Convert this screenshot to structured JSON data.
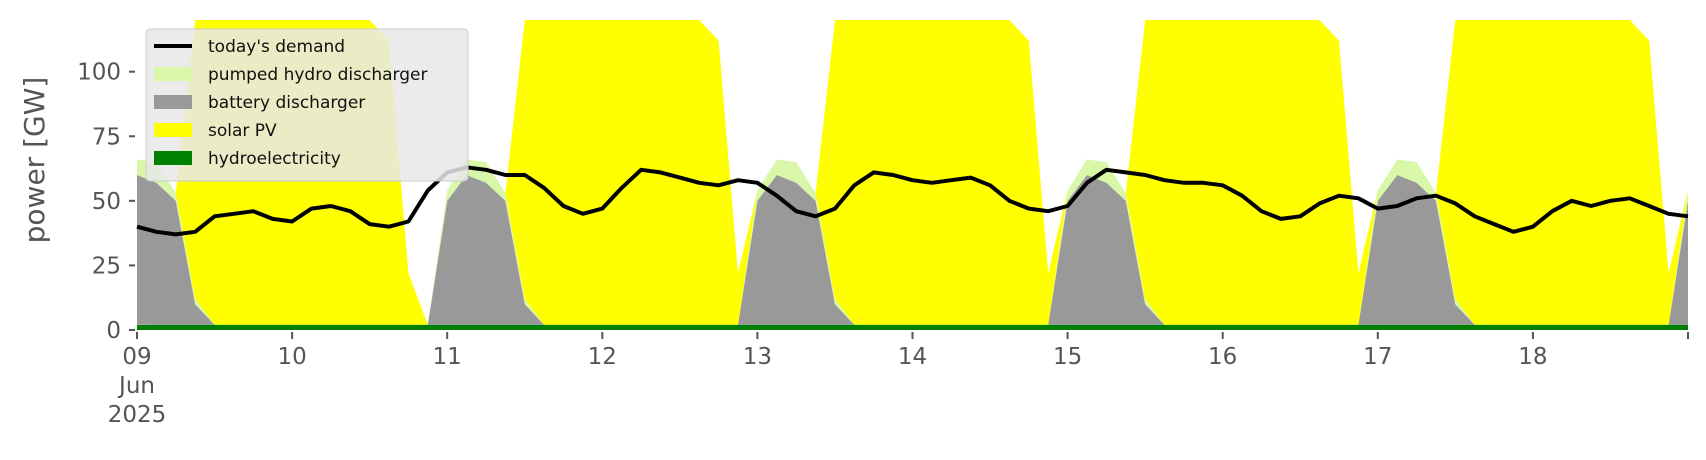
{
  "chart_data": {
    "type": "area",
    "title": "",
    "xlabel": "",
    "ylabel": "power [GW]",
    "xlim_days": [
      0,
      10
    ],
    "ylim": [
      0,
      120
    ],
    "x_ticks": [
      "09\nJun\n2025",
      "10",
      "11",
      "12",
      "13",
      "14",
      "15",
      "16",
      "17",
      "18",
      ""
    ],
    "y_ticks": [
      0,
      25,
      50,
      75,
      100
    ],
    "grid": false,
    "legend_position": "top-left",
    "colors": {
      "demand": "#000000",
      "pumped_hydro": "#d9f7a8",
      "battery": "#999999",
      "solar": "#ffff00",
      "hydro": "#008000",
      "legend_bg": "#e8e8e8"
    },
    "legend": [
      {
        "key": "demand",
        "label": "today's demand",
        "kind": "line"
      },
      {
        "key": "pumped_hydro",
        "label": "pumped hydro discharger",
        "kind": "patch"
      },
      {
        "key": "battery",
        "label": "battery discharger",
        "kind": "patch"
      },
      {
        "key": "solar",
        "label": "solar PV",
        "kind": "patch"
      },
      {
        "key": "hydro",
        "label": "hydroelectricity",
        "kind": "patch"
      }
    ],
    "series": [
      {
        "key": "hydro",
        "values": [
          2,
          2,
          2,
          2,
          2,
          2,
          2,
          2,
          2,
          2,
          2,
          2,
          2,
          2,
          2,
          2,
          2,
          2,
          2,
          2,
          2,
          2,
          2,
          2,
          2,
          2,
          2,
          2,
          2,
          2,
          2,
          2,
          2,
          2,
          2,
          2,
          2,
          2,
          2,
          2,
          2,
          2,
          2,
          2,
          2,
          2,
          2,
          2,
          2,
          2,
          2,
          2,
          2,
          2,
          2,
          2,
          2,
          2,
          2,
          2,
          2,
          2,
          2,
          2,
          2,
          2,
          2,
          2,
          2,
          2,
          2,
          2,
          2,
          2,
          2,
          2,
          2,
          2,
          2,
          2,
          2
        ]
      },
      {
        "key": "battery",
        "values": [
          58,
          55,
          48,
          8,
          0,
          0,
          0,
          0,
          0,
          0,
          0,
          0,
          0,
          0,
          0,
          0,
          48,
          58,
          55,
          48,
          8,
          0,
          0,
          0,
          0,
          0,
          0,
          0,
          0,
          0,
          0,
          0,
          48,
          58,
          55,
          48,
          8,
          0,
          0,
          0,
          0,
          0,
          0,
          0,
          0,
          0,
          0,
          0,
          48,
          58,
          55,
          48,
          8,
          0,
          0,
          0,
          0,
          0,
          0,
          0,
          0,
          0,
          0,
          0,
          48,
          58,
          55,
          48,
          8,
          0,
          0,
          0,
          0,
          0,
          0,
          0,
          0,
          0,
          0,
          0,
          48
        ]
      },
      {
        "key": "pumped_hydro",
        "values": [
          6,
          8,
          3,
          2,
          0,
          0,
          0,
          0,
          0,
          0,
          0,
          0,
          0,
          0,
          0,
          0,
          4,
          6,
          8,
          3,
          2,
          0,
          0,
          0,
          0,
          0,
          0,
          0,
          0,
          0,
          0,
          0,
          4,
          6,
          8,
          3,
          2,
          0,
          0,
          0,
          0,
          0,
          0,
          0,
          0,
          0,
          0,
          0,
          4,
          6,
          8,
          3,
          2,
          0,
          0,
          0,
          0,
          0,
          0,
          0,
          0,
          0,
          0,
          0,
          4,
          6,
          8,
          3,
          2,
          0,
          0,
          0,
          0,
          0,
          0,
          0,
          0,
          0,
          0,
          0,
          4
        ]
      },
      {
        "key": "solar",
        "values": [
          0,
          0,
          0,
          110,
          130,
          130,
          130,
          130,
          130,
          130,
          130,
          130,
          130,
          110,
          20,
          0,
          0,
          0,
          0,
          0,
          110,
          130,
          130,
          130,
          130,
          130,
          130,
          130,
          130,
          130,
          110,
          20,
          0,
          0,
          0,
          0,
          110,
          130,
          130,
          130,
          130,
          130,
          130,
          130,
          130,
          130,
          110,
          20,
          0,
          0,
          0,
          0,
          110,
          130,
          130,
          130,
          130,
          130,
          130,
          130,
          130,
          130,
          110,
          20,
          0,
          0,
          0,
          0,
          110,
          130,
          130,
          130,
          130,
          130,
          130,
          130,
          130,
          130,
          110,
          20,
          0
        ]
      }
    ],
    "demand": [
      40,
      38,
      37,
      38,
      44,
      45,
      46,
      43,
      42,
      47,
      48,
      46,
      41,
      40,
      42,
      54,
      61,
      63,
      62,
      60,
      60,
      55,
      48,
      45,
      47,
      55,
      62,
      61,
      59,
      57,
      56,
      58,
      57,
      52,
      46,
      44,
      47,
      56,
      61,
      60,
      58,
      57,
      58,
      59,
      56,
      50,
      47,
      46,
      48,
      57,
      62,
      61,
      60,
      58,
      57,
      57,
      56,
      52,
      46,
      43,
      44,
      49,
      52,
      51,
      47,
      48,
      51,
      52,
      49,
      44,
      41,
      38,
      40,
      46,
      50,
      48,
      50,
      51,
      48,
      45,
      44
    ]
  }
}
